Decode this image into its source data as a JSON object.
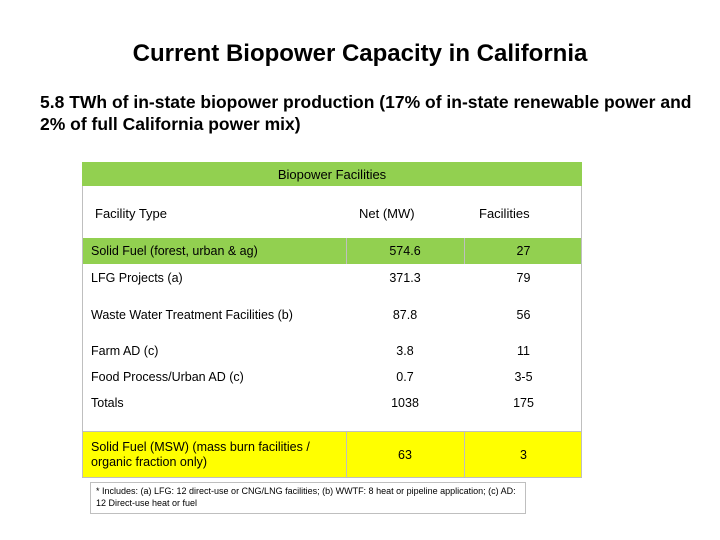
{
  "title": "Current Biopower Capacity in California",
  "subtitle": "5.8 TWh of in-state biopower production (17% of in-state renewable power and 2% of full California power mix)",
  "table": {
    "title": "Biopower Facilities",
    "headers": [
      "Facility Type",
      "Net (MW)",
      "Facilities"
    ],
    "rows": [
      {
        "type": "Solid Fuel (forest, urban & ag)",
        "mw": "574.6",
        "facilities": "27",
        "highlight": "green"
      },
      {
        "type": "LFG Projects (a)",
        "mw": "371.3",
        "facilities": "79",
        "highlight": "none"
      },
      {
        "type": "Waste Water Treatment Facilities (b)",
        "mw": "87.8",
        "facilities": "56",
        "highlight": "none"
      },
      {
        "type": "Farm AD (c)",
        "mw": "3.8",
        "facilities": "11",
        "highlight": "none"
      },
      {
        "type": "Food Process/Urban AD (c)",
        "mw": "0.7",
        "facilities": "3-5",
        "highlight": "none"
      },
      {
        "type": "Totals",
        "mw": "1038",
        "facilities": "175",
        "highlight": "none"
      },
      {
        "type": "Solid Fuel (MSW) (mass burn facilities / organic fraction only)",
        "mw": "63",
        "facilities": "3",
        "highlight": "yellow"
      }
    ]
  },
  "footnote": "* Includes: (a) LFG: 12 direct-use or CNG/LNG facilities; (b) WWTF: 8 heat or pipeline application; (c) AD: 12 Direct-use heat or fuel",
  "colors": {
    "green": "#92d050",
    "yellow": "#ffff00"
  }
}
